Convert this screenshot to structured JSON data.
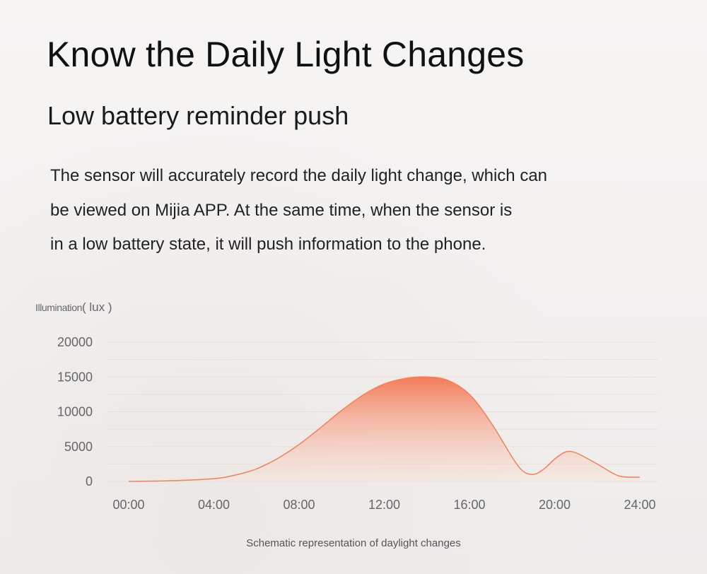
{
  "header": {
    "title": "Know the Daily Light Changes",
    "subtitle": "Low battery reminder push"
  },
  "description": {
    "lines": [
      "The sensor will accurately record the daily light change, which can",
      "be viewed on Mijia APP. At the same time, when the sensor is",
      "in a low battery state, it will push information to the phone."
    ]
  },
  "chart_data": {
    "type": "area",
    "title": "",
    "ylabel_main": "Illumination",
    "ylabel_unit": "( lux )",
    "xlabel": "",
    "caption": "Schematic representation of daylight changes",
    "x_ticks": [
      "00:00",
      "04:00",
      "08:00",
      "12:00",
      "16:00",
      "20:00",
      "24:00"
    ],
    "y_ticks": [
      "20000",
      "15000",
      "10000",
      "5000",
      "0"
    ],
    "ylim": [
      0,
      20000
    ],
    "xlim": [
      0,
      24
    ],
    "grid": true,
    "series": [
      {
        "x": [
          0,
          2,
          4,
          5,
          6,
          7,
          8,
          9,
          10,
          11,
          12,
          13,
          14,
          15,
          16,
          17,
          18,
          18.5,
          19,
          19.5,
          20,
          20.5,
          21,
          22,
          23,
          24
        ],
        "y": [
          0,
          100,
          400,
          900,
          1800,
          3300,
          5300,
          7700,
          10200,
          12400,
          14000,
          14800,
          15000,
          14500,
          12500,
          8500,
          3500,
          1500,
          1000,
          1800,
          3200,
          4200,
          4100,
          2500,
          800,
          600
        ]
      }
    ],
    "colors": {
      "line": "#e8845f",
      "fill_top": "#f37552",
      "fill_bottom": "#fbe1d6",
      "grid": "#eddcd4",
      "tick_text": "#666666"
    }
  }
}
